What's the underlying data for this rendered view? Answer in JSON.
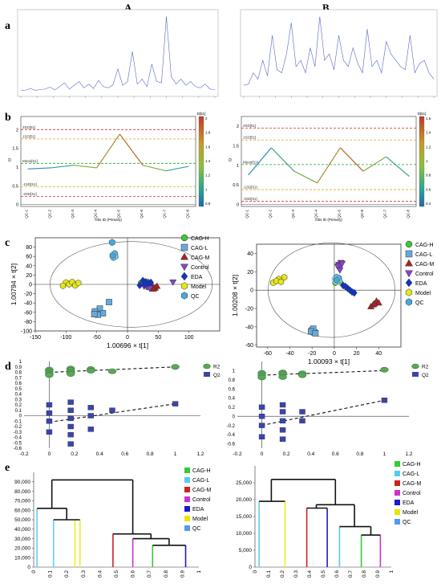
{
  "figure": {
    "column_labels": [
      "A",
      "B"
    ],
    "panel_labels": [
      "a",
      "b",
      "c",
      "d",
      "e"
    ]
  },
  "groups": {
    "names": [
      "CAG-H",
      "CAG-L",
      "CAG-M",
      "Control",
      "EDA",
      "Model",
      "QC"
    ],
    "scatter_colors": [
      "#3cc63c",
      "#66aadd",
      "#aa2222",
      "#8844cc",
      "#1133cc",
      "#e6e61a",
      "#44aadd"
    ],
    "scatter_shapes": [
      "circle",
      "square",
      "triangle",
      "triangle-down",
      "diamond",
      "hexagon",
      "hexagon"
    ],
    "dendro_colors": [
      "#33cc33",
      "#55ccee",
      "#cc2222",
      "#cc33cc",
      "#1a1acc",
      "#e6e600",
      "#5599ee"
    ]
  },
  "chart_data": [
    {
      "id": "a-A",
      "type": "line",
      "x": [
        0,
        0.3,
        0.6,
        0.9,
        1.2,
        1.5,
        1.8,
        2.1,
        2.4,
        2.7,
        3.0,
        3.3,
        3.6,
        3.9,
        4.2,
        4.5,
        4.8,
        5.1,
        5.4,
        5.7,
        6.0,
        6.3,
        6.6,
        6.9,
        7.2,
        7.5,
        7.8,
        8.1,
        8.4,
        8.7,
        9.0,
        9.3,
        9.6,
        9.9,
        10.2,
        10.5,
        10.8,
        11.1,
        11.4,
        11.7,
        12
      ],
      "y": [
        0.05,
        0.06,
        0.12,
        0.05,
        0.08,
        0.1,
        0.18,
        0.07,
        0.2,
        0.35,
        0.1,
        0.25,
        0.4,
        0.15,
        0.3,
        0.12,
        0.45,
        0.2,
        0.15,
        0.28,
        0.9,
        0.25,
        0.4,
        1.6,
        0.3,
        0.5,
        0.2,
        1.1,
        0.4,
        0.35,
        3.0,
        0.6,
        0.3,
        0.5,
        0.25,
        0.4,
        0.2,
        0.15,
        0.3,
        0.1,
        0.08
      ]
    },
    {
      "id": "a-B",
      "type": "line",
      "x": [
        0,
        0.3,
        0.6,
        0.9,
        1.2,
        1.5,
        1.8,
        2.1,
        2.4,
        2.7,
        3.0,
        3.3,
        3.6,
        3.9,
        4.2,
        4.5,
        4.8,
        5.1,
        5.4,
        5.7,
        6.0,
        6.3,
        6.6,
        6.9,
        7.2,
        7.5,
        7.8,
        8.1,
        8.4,
        8.7,
        9.0,
        9.3,
        9.6,
        9.9,
        10.2,
        10.5,
        10.8,
        11.1,
        11.4,
        11.7,
        12
      ],
      "y": [
        0.1,
        0.12,
        0.3,
        0.2,
        0.5,
        0.25,
        0.9,
        0.35,
        0.3,
        0.6,
        1.1,
        0.4,
        0.5,
        0.3,
        0.7,
        0.4,
        1.2,
        0.5,
        0.6,
        0.35,
        0.9,
        0.5,
        0.4,
        0.7,
        0.45,
        0.3,
        1.0,
        0.4,
        0.5,
        0.3,
        0.8,
        0.6,
        0.5,
        0.4,
        0.35,
        0.9,
        0.3,
        0.45,
        0.5,
        0.3,
        0.2
      ]
    },
    {
      "id": "b-A",
      "type": "line",
      "categories": [
        "QC-1",
        "QC-2",
        "QC-3",
        "QC-4",
        "QC-5",
        "QC-6",
        "QC-7",
        "QC-8"
      ],
      "values": [
        0.95,
        0.98,
        1.05,
        0.98,
        1.88,
        1.05,
        0.9,
        1.02
      ],
      "xlabel": "Obs ID (Primary)",
      "ylabel": "D",
      "ylim": [
        -0.05,
        2.35
      ],
      "ref_lines": [
        {
          "y": 2.0,
          "label": "2SD[51]",
          "color": "#cc3333"
        },
        {
          "y": 1.75,
          "label": "1SD[51]",
          "color": "#e6a817"
        },
        {
          "y": 1.1,
          "label": "Mean[51]",
          "color": "#22aa22"
        },
        {
          "y": 0.48,
          "label": "-1SD[51]",
          "color": "#e6a817"
        },
        {
          "y": 0.22,
          "label": "-2SD[51]",
          "color": "#cc3333"
        }
      ],
      "colorbar": {
        "title": "D[51]",
        "ticks": [
          "2",
          "1.8",
          "1.6",
          "1.4",
          "1.2",
          "1",
          "0.8"
        ]
      }
    },
    {
      "id": "b-B",
      "type": "line",
      "categories": [
        "QC-1",
        "QC-2",
        "QC-3",
        "QC-4",
        "QC-5",
        "QC-6",
        "QC-7",
        "QC-8"
      ],
      "values": [
        0.75,
        1.45,
        0.85,
        0.55,
        1.45,
        0.85,
        1.22,
        0.72
      ],
      "xlabel": "Obs ID (Primary)",
      "ylabel": "D",
      "ylim": [
        -0.05,
        2.25
      ],
      "ref_lines": [
        {
          "y": 1.95,
          "label": "2SD[51]",
          "color": "#cc3333"
        },
        {
          "y": 1.65,
          "label": "1SD[51]",
          "color": "#e6a817"
        },
        {
          "y": 1.02,
          "label": "Mean[51]",
          "color": "#22aa22"
        },
        {
          "y": 0.38,
          "label": "-1SD[51]",
          "color": "#e6a817"
        },
        {
          "y": 0.08,
          "label": "-2SD[51]",
          "color": "#cc3333"
        }
      ],
      "colorbar": {
        "title": "D[51]",
        "ticks": [
          "1.6",
          "1.4",
          "1.2",
          "1",
          "0.8",
          "0.6",
          "0.4"
        ]
      }
    },
    {
      "id": "c-A",
      "type": "scatter",
      "xlabel": "1.00696 × t[1]",
      "ylabel": "1.00794 × t[2]",
      "xlim": [
        -150,
        150
      ],
      "ylim": [
        -100,
        100
      ],
      "xticks": [
        -150,
        -100,
        -50,
        0,
        50,
        100
      ],
      "yticks": [
        -100,
        -80,
        -60,
        -40,
        -20,
        0,
        20,
        40,
        60,
        80
      ],
      "series": [
        {
          "name": "CAG-H",
          "points": [
            [
              28,
              6
            ],
            [
              30,
              4
            ],
            [
              25,
              2
            ],
            [
              33,
              5
            ],
            [
              27,
              0
            ],
            [
              22,
              3
            ]
          ]
        },
        {
          "name": "CAG-L",
          "points": [
            [
              -45,
              -52
            ],
            [
              -53,
              -58
            ],
            [
              -40,
              -62
            ],
            [
              -48,
              -65
            ],
            [
              -30,
              -38
            ],
            [
              -54,
              -64
            ]
          ]
        },
        {
          "name": "CAG-M",
          "points": [
            [
              40,
              -2
            ],
            [
              45,
              -8
            ],
            [
              38,
              -5
            ],
            [
              48,
              -4
            ],
            [
              42,
              -10
            ],
            [
              35,
              -6
            ]
          ]
        },
        {
          "name": "Control",
          "points": [
            [
              74,
              5
            ],
            [
              32,
              -5
            ],
            [
              30,
              -2
            ],
            [
              36,
              -8
            ],
            [
              27,
              -4
            ],
            [
              28,
              2
            ]
          ]
        },
        {
          "name": "EDA",
          "points": [
            [
              30,
              5
            ],
            [
              34,
              2
            ],
            [
              20,
              -2
            ],
            [
              38,
              4
            ],
            [
              25,
              8
            ],
            [
              28,
              0
            ]
          ]
        },
        {
          "name": "Model",
          "points": [
            [
              -100,
              4
            ],
            [
              -95,
              0
            ],
            [
              -90,
              5
            ],
            [
              -85,
              -2
            ],
            [
              -80,
              3
            ],
            [
              -105,
              -3
            ]
          ]
        },
        {
          "name": "QC",
          "points": [
            [
              -25,
              90
            ],
            [
              -22,
              63
            ],
            [
              -20,
              60
            ],
            [
              -23,
              58
            ],
            [
              -21,
              66
            ],
            [
              -24,
              62
            ]
          ]
        }
      ]
    },
    {
      "id": "c-B",
      "type": "scatter",
      "xlabel": "1.00093 × t[1]",
      "ylabel": "1.00208 × t[2]",
      "xlim": [
        -70,
        60
      ],
      "ylim": [
        -62,
        50
      ],
      "xticks": [
        -60,
        -40,
        -20,
        0,
        20,
        40
      ],
      "yticks": [
        -60,
        -40,
        -20,
        0,
        20,
        40
      ],
      "series": [
        {
          "name": "CAG-H",
          "points": [
            [
              2,
              10
            ],
            [
              4,
              12
            ],
            [
              1,
              8
            ],
            [
              5,
              9
            ],
            [
              3,
              11
            ]
          ]
        },
        {
          "name": "CAG-L",
          "points": [
            [
              -20,
              -44
            ],
            [
              -18,
              -46
            ],
            [
              -19,
              -42
            ],
            [
              -21,
              -45
            ],
            [
              -17,
              -47
            ]
          ]
        },
        {
          "name": "CAG-M",
          "points": [
            [
              38,
              -12
            ],
            [
              35,
              -16
            ],
            [
              33,
              -18
            ],
            [
              40,
              -14
            ],
            [
              36,
              -15
            ]
          ]
        },
        {
          "name": "Control",
          "points": [
            [
              4,
              28
            ],
            [
              6,
              30
            ],
            [
              5,
              25
            ],
            [
              3,
              26
            ],
            [
              7,
              29
            ],
            [
              5,
              22
            ]
          ]
        },
        {
          "name": "EDA",
          "points": [
            [
              8,
              5
            ],
            [
              12,
              2
            ],
            [
              14,
              0
            ],
            [
              16,
              -2
            ],
            [
              18,
              -3
            ],
            [
              10,
              4
            ]
          ]
        },
        {
          "name": "Model",
          "points": [
            [
              -55,
              8
            ],
            [
              -50,
              12
            ],
            [
              -45,
              14
            ],
            [
              -52,
              10
            ],
            [
              -48,
              9
            ]
          ]
        },
        {
          "name": "QC",
          "points": [
            [
              1,
              12
            ],
            [
              2,
              14
            ],
            [
              3,
              10
            ],
            [
              4,
              13
            ],
            [
              2,
              11
            ]
          ]
        }
      ]
    },
    {
      "id": "d-A",
      "type": "scatter",
      "xlim": [
        -0.2,
        1.2
      ],
      "ylim": [
        -0.6,
        1.0
      ],
      "xticks": [
        -0.2,
        0,
        0.2,
        0.4,
        0.6,
        0.8,
        1,
        1.2
      ],
      "yticks": [
        -0.6,
        -0.5,
        -0.4,
        -0.3,
        -0.2,
        -0.1,
        0,
        0.1,
        0.2,
        0.3,
        0.4,
        0.5,
        0.6,
        0.7,
        0.8,
        0.9,
        1
      ],
      "series": [
        {
          "name": "R2",
          "points": [
            [
              0,
              0.85
            ],
            [
              0,
              0.82
            ],
            [
              0,
              0.78
            ],
            [
              0,
              0.75
            ],
            [
              0.17,
              0.87
            ],
            [
              0.17,
              0.84
            ],
            [
              0.17,
              0.8
            ],
            [
              0.17,
              0.77
            ],
            [
              0.33,
              0.86
            ],
            [
              0.33,
              0.83
            ],
            [
              0.5,
              0.82
            ],
            [
              1,
              0.9
            ]
          ],
          "trend": [
            [
              0,
              0.8
            ],
            [
              1,
              0.9
            ]
          ]
        },
        {
          "name": "Q2",
          "points": [
            [
              0,
              0.2
            ],
            [
              0,
              0.05
            ],
            [
              0,
              -0.1
            ],
            [
              0,
              -0.3
            ],
            [
              0.17,
              0.25
            ],
            [
              0.17,
              0.1
            ],
            [
              0.17,
              -0.05
            ],
            [
              0.17,
              -0.2
            ],
            [
              0.17,
              -0.35
            ],
            [
              0.17,
              -0.52
            ],
            [
              0.33,
              0.15
            ],
            [
              0.33,
              0.0
            ],
            [
              0.33,
              -0.25
            ],
            [
              0.5,
              0.1
            ],
            [
              1,
              0.22
            ]
          ],
          "trend": [
            [
              0,
              -0.12
            ],
            [
              1,
              0.22
            ]
          ]
        }
      ]
    },
    {
      "id": "d-B",
      "type": "scatter",
      "xlim": [
        -0.2,
        1.2
      ],
      "ylim": [
        -0.7,
        1.2
      ],
      "xticks": [
        -0.2,
        0,
        0.2,
        0.4,
        0.6,
        0.8,
        1,
        1.2
      ],
      "yticks": [
        -0.6,
        -0.4,
        -0.2,
        0,
        0.2,
        0.4,
        0.6,
        0.8,
        1
      ],
      "series": [
        {
          "name": "R2",
          "points": [
            [
              0,
              0.95
            ],
            [
              0,
              0.9
            ],
            [
              0,
              0.85
            ],
            [
              0.17,
              0.96
            ],
            [
              0.17,
              0.92
            ],
            [
              0.17,
              0.86
            ],
            [
              0.33,
              0.94
            ],
            [
              0.33,
              0.9
            ],
            [
              1,
              1.02
            ]
          ],
          "trend": [
            [
              0,
              0.9
            ],
            [
              1,
              1.0
            ]
          ]
        },
        {
          "name": "Q2",
          "points": [
            [
              0,
              0.2
            ],
            [
              0,
              0.0
            ],
            [
              0,
              -0.2
            ],
            [
              0,
              -0.45
            ],
            [
              0.17,
              0.25
            ],
            [
              0.17,
              0.1
            ],
            [
              0.17,
              -0.1
            ],
            [
              0.17,
              -0.3
            ],
            [
              0.17,
              -0.5
            ],
            [
              0.33,
              0.1
            ],
            [
              0.33,
              -0.1
            ],
            [
              1,
              0.35
            ]
          ],
          "trend": [
            [
              0,
              -0.2
            ],
            [
              1,
              0.35
            ]
          ]
        }
      ]
    },
    {
      "id": "e-A",
      "type": "dendrogram",
      "ylim": [
        0,
        100000
      ],
      "yticks": [
        "0",
        "10,000",
        "20,000",
        "30,000",
        "40,000",
        "50,000",
        "60,000",
        "70,000",
        "80,000",
        "90,000"
      ],
      "xticks": [
        "0",
        "0.1",
        "0.2",
        "0.3",
        "0.4",
        "0.5",
        "0.6",
        "0.7",
        "0.8",
        "0.9",
        "1"
      ]
    },
    {
      "id": "e-B",
      "type": "dendrogram",
      "ylim": [
        0,
        30000
      ],
      "yticks": [
        "0",
        "5,000",
        "10,000",
        "15,000",
        "20,000",
        "25,000"
      ],
      "xticks": [
        "0",
        "0.1",
        "0.2",
        "0.3",
        "0.4",
        "0.5",
        "0.6",
        "0.7",
        "0.8",
        "0.9",
        "1"
      ]
    }
  ]
}
